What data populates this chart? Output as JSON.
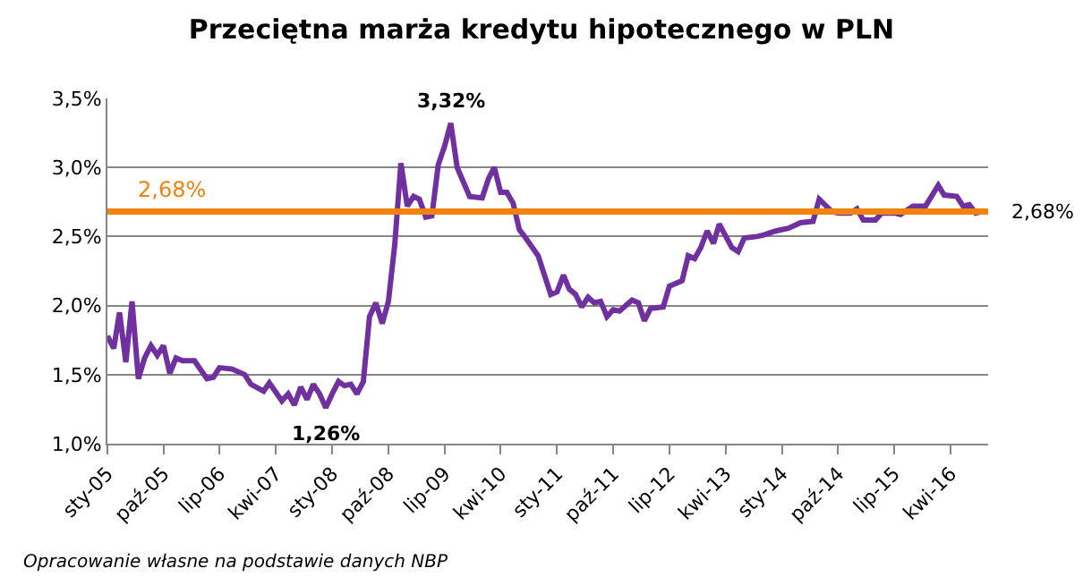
{
  "chart_data": {
    "type": "line",
    "title": "Przeciętna marża kredytu hipotecznego w PLN",
    "x": [
      "2005-01",
      "2005-02",
      "2005-03",
      "2005-04",
      "2005-05",
      "2005-06",
      "2005-07",
      "2005-08",
      "2005-09",
      "2005-10",
      "2005-11",
      "2005-12",
      "2006-01",
      "2006-03",
      "2006-05",
      "2006-06",
      "2006-07",
      "2006-09",
      "2006-11",
      "2006-12",
      "2007-02",
      "2007-03",
      "2007-05",
      "2007-06",
      "2007-07",
      "2007-08",
      "2007-09",
      "2007-10",
      "2007-11",
      "2007-12",
      "2008-01",
      "2008-02",
      "2008-03",
      "2008-04",
      "2008-05",
      "2008-06",
      "2008-07",
      "2008-08",
      "2008-09",
      "2008-10",
      "2008-11",
      "2008-12",
      "2009-01",
      "2009-02",
      "2009-03",
      "2009-04",
      "2009-05",
      "2009-06",
      "2009-07",
      "2009-08",
      "2009-09",
      "2009-11",
      "2010-01",
      "2010-02",
      "2010-03",
      "2010-04",
      "2010-05",
      "2010-06",
      "2010-07",
      "2010-08",
      "2010-10",
      "2010-12",
      "2011-01",
      "2011-02",
      "2011-03",
      "2011-04",
      "2011-05",
      "2011-06",
      "2011-07",
      "2011-08",
      "2011-09",
      "2011-10",
      "2011-11",
      "2012-01",
      "2012-02",
      "2012-03",
      "2012-04",
      "2012-06",
      "2012-07",
      "2012-09",
      "2012-10",
      "2012-11",
      "2012-12",
      "2013-01",
      "2013-02",
      "2013-03",
      "2013-05",
      "2013-06",
      "2013-07",
      "2013-09",
      "2013-10",
      "2013-12",
      "2014-02",
      "2014-04",
      "2014-06",
      "2014-07",
      "2014-09",
      "2014-10",
      "2014-12",
      "2015-01",
      "2015-02",
      "2015-04",
      "2015-05",
      "2015-07",
      "2015-08",
      "2015-10",
      "2015-12",
      "2016-02",
      "2016-03",
      "2016-05",
      "2016-06",
      "2016-07",
      "2016-08",
      "2016-09"
    ],
    "series": [
      {
        "color": "#7030a0",
        "values": [
          1.78,
          1.69,
          1.95,
          1.59,
          2.03,
          1.47,
          1.62,
          1.71,
          1.64,
          1.71,
          1.51,
          1.62,
          1.6,
          1.6,
          1.47,
          1.48,
          1.55,
          1.54,
          1.5,
          1.43,
          1.38,
          1.44,
          1.31,
          1.36,
          1.28,
          1.41,
          1.32,
          1.43,
          1.36,
          1.26,
          1.36,
          1.45,
          1.42,
          1.43,
          1.36,
          1.45,
          1.92,
          2.02,
          1.87,
          2.03,
          2.44,
          3.03,
          2.72,
          2.79,
          2.77,
          2.64,
          2.65,
          3.02,
          3.15,
          3.32,
          3.0,
          2.79,
          2.78,
          2.92,
          3.0,
          2.82,
          2.82,
          2.74,
          2.55,
          2.49,
          2.36,
          2.08,
          2.1,
          2.22,
          2.12,
          2.08,
          1.99,
          2.06,
          2.02,
          2.03,
          1.92,
          1.97,
          1.96,
          2.04,
          2.02,
          1.89,
          1.98,
          1.99,
          2.14,
          2.18,
          2.36,
          2.34,
          2.42,
          2.54,
          2.45,
          2.59,
          2.42,
          2.39,
          2.49,
          2.5,
          2.51,
          2.54,
          2.56,
          2.6,
          2.61,
          2.77,
          2.68,
          2.67,
          2.67,
          2.7,
          2.62,
          2.62,
          2.67,
          2.67,
          2.66,
          2.72,
          2.72,
          2.87,
          2.8,
          2.79,
          2.72,
          2.73,
          2.67,
          2.68
        ]
      }
    ],
    "xlim": [
      "2005-01",
      "2016-10"
    ],
    "xticks": [
      {
        "value": "2005-01",
        "label": "sty-05"
      },
      {
        "value": "2005-10",
        "label": "paź-05"
      },
      {
        "value": "2006-07",
        "label": "lip-06"
      },
      {
        "value": "2007-04",
        "label": "kwi-07"
      },
      {
        "value": "2008-01",
        "label": "sty-08"
      },
      {
        "value": "2008-10",
        "label": "paź-08"
      },
      {
        "value": "2009-07",
        "label": "lip-09"
      },
      {
        "value": "2010-04",
        "label": "kwi-10"
      },
      {
        "value": "2011-01",
        "label": "sty-11"
      },
      {
        "value": "2011-10",
        "label": "paź-11"
      },
      {
        "value": "2012-07",
        "label": "lip-12"
      },
      {
        "value": "2013-04",
        "label": "kwi-13"
      },
      {
        "value": "2014-01",
        "label": "sty-14"
      },
      {
        "value": "2014-10",
        "label": "paź-14"
      },
      {
        "value": "2015-07",
        "label": "lip-15"
      },
      {
        "value": "2016-04",
        "label": "kwi-16"
      }
    ],
    "ylim": [
      1.0,
      3.5
    ],
    "yticks": [
      {
        "value": 1.0,
        "label": "1,0%"
      },
      {
        "value": 1.5,
        "label": "1,5%"
      },
      {
        "value": 2.0,
        "label": "2,0%"
      },
      {
        "value": 2.5,
        "label": "2,5%"
      },
      {
        "value": 3.0,
        "label": "3,0%"
      },
      {
        "value": 3.5,
        "label": "3,5%"
      }
    ],
    "ref_lines": [
      {
        "axis": "y",
        "value": 2.68,
        "label": "2,68%",
        "color": "#f0820f"
      }
    ],
    "annotations": [
      {
        "text": "3,32%",
        "x": "2009-08",
        "y": 3.32
      },
      {
        "text": "1,26%",
        "x": "2007-12",
        "y": 1.26
      },
      {
        "text": "2,68%",
        "x": "2016-09",
        "y": 2.68
      },
      "Opracowanie własne na podstawie danych NBP"
    ],
    "grid": "y",
    "marker": "none",
    "line_style": "solid"
  }
}
